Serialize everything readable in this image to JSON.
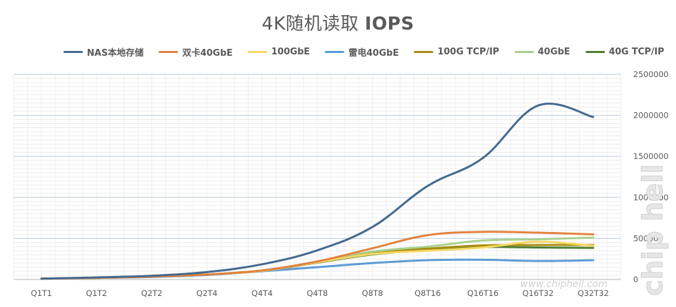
{
  "title_main": "4K随机读取",
  "title_bold": "IOPS",
  "chart_data": {
    "type": "line",
    "title": "4K随机读取 IOPS",
    "categories": [
      "Q1T1",
      "Q1T2",
      "Q2T2",
      "Q2T4",
      "Q4T4",
      "Q4T8",
      "Q8T8",
      "Q8T16",
      "Q16T16",
      "Q16T32",
      "Q32T32"
    ],
    "ylim": [
      0,
      2500000
    ],
    "yticks": [
      "0",
      "500000",
      "1000000",
      "1500000",
      "2000000",
      "2500000"
    ],
    "ytick_values": [
      0,
      500000,
      1000000,
      1500000,
      2000000,
      2500000
    ],
    "grid": true,
    "legend_position": "top",
    "series": [
      {
        "name": "NAS本地存储",
        "color": "#44698f",
        "values": [
          10000,
          25000,
          45000,
          90000,
          185000,
          355000,
          640000,
          1140000,
          1480000,
          2120000,
          1980000
        ]
      },
      {
        "name": "双卡40GbE",
        "color": "#e2823f",
        "values": [
          10000,
          20000,
          35000,
          60000,
          110000,
          220000,
          380000,
          540000,
          580000,
          570000,
          550000
        ]
      },
      {
        "name": "100GbE",
        "color": "#f7d865",
        "values": [
          10000,
          20000,
          35000,
          60000,
          105000,
          210000,
          310000,
          350000,
          390000,
          460000,
          410000
        ]
      },
      {
        "name": "雷电40GbE",
        "color": "#5b9bd5",
        "values": [
          10000,
          20000,
          30000,
          55000,
          100000,
          150000,
          200000,
          235000,
          240000,
          225000,
          235000
        ]
      },
      {
        "name": "100G TCP/IP",
        "color": "#a98e14",
        "values": [
          10000,
          20000,
          35000,
          60000,
          108000,
          210000,
          315000,
          375000,
          415000,
          420000,
          420000
        ]
      },
      {
        "name": "40GbE",
        "color": "#a8d08d",
        "values": [
          10000,
          20000,
          35000,
          60000,
          110000,
          215000,
          340000,
          400000,
          475000,
          490000,
          510000
        ]
      },
      {
        "name": "40G TCP/IP",
        "color": "#507e32",
        "values": [
          10000,
          20000,
          35000,
          60000,
          105000,
          205000,
          305000,
          360000,
          395000,
          390000,
          385000
        ]
      }
    ]
  },
  "watermark": {
    "text": "www.chiphell.com",
    "logo": "chip hell"
  }
}
